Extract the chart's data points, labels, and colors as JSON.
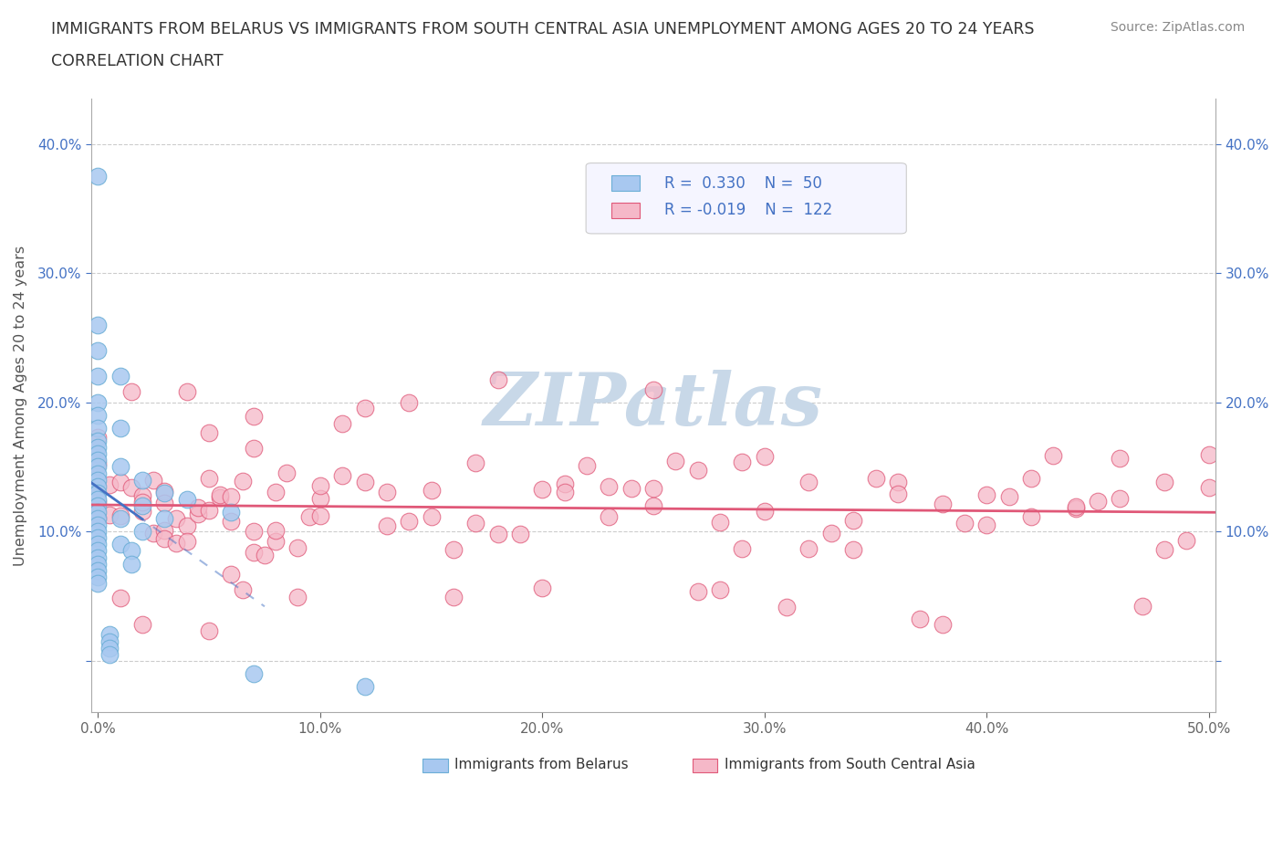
{
  "title_line1": "IMMIGRANTS FROM BELARUS VS IMMIGRANTS FROM SOUTH CENTRAL ASIA UNEMPLOYMENT AMONG AGES 20 TO 24 YEARS",
  "title_line2": "CORRELATION CHART",
  "source_text": "Source: ZipAtlas.com",
  "ylabel": "Unemployment Among Ages 20 to 24 years",
  "xlim": [
    -0.003,
    0.503
  ],
  "ylim": [
    -0.04,
    0.435
  ],
  "xtick_positions": [
    0.0,
    0.1,
    0.2,
    0.3,
    0.4,
    0.5
  ],
  "xtick_labels": [
    "0.0%",
    "10.0%",
    "20.0%",
    "30.0%",
    "40.0%",
    "50.0%"
  ],
  "ytick_positions": [
    0.0,
    0.1,
    0.2,
    0.3,
    0.4
  ],
  "ytick_labels": [
    "",
    "10.0%",
    "20.0%",
    "30.0%",
    "40.0%"
  ],
  "belarus_color": "#a8c8f0",
  "belarus_edge": "#6baed6",
  "sca_color": "#f5b8c8",
  "sca_edge": "#e05878",
  "trend_belarus_color": "#4472c4",
  "trend_sca_color": "#e05878",
  "R_belarus": 0.33,
  "N_belarus": 50,
  "R_sca": -0.019,
  "N_sca": 122,
  "watermark": "ZIPatlas",
  "watermark_color": "#c8d8e8",
  "legend_label_belarus": "Immigrants from Belarus",
  "legend_label_sca": "Immigrants from South Central Asia",
  "grid_color": "#cccccc",
  "spine_color": "#aaaaaa",
  "tick_color_y": "#4472c4",
  "tick_color_x": "#666666",
  "title_color": "#333333",
  "source_color": "#888888",
  "ylabel_color": "#555555"
}
